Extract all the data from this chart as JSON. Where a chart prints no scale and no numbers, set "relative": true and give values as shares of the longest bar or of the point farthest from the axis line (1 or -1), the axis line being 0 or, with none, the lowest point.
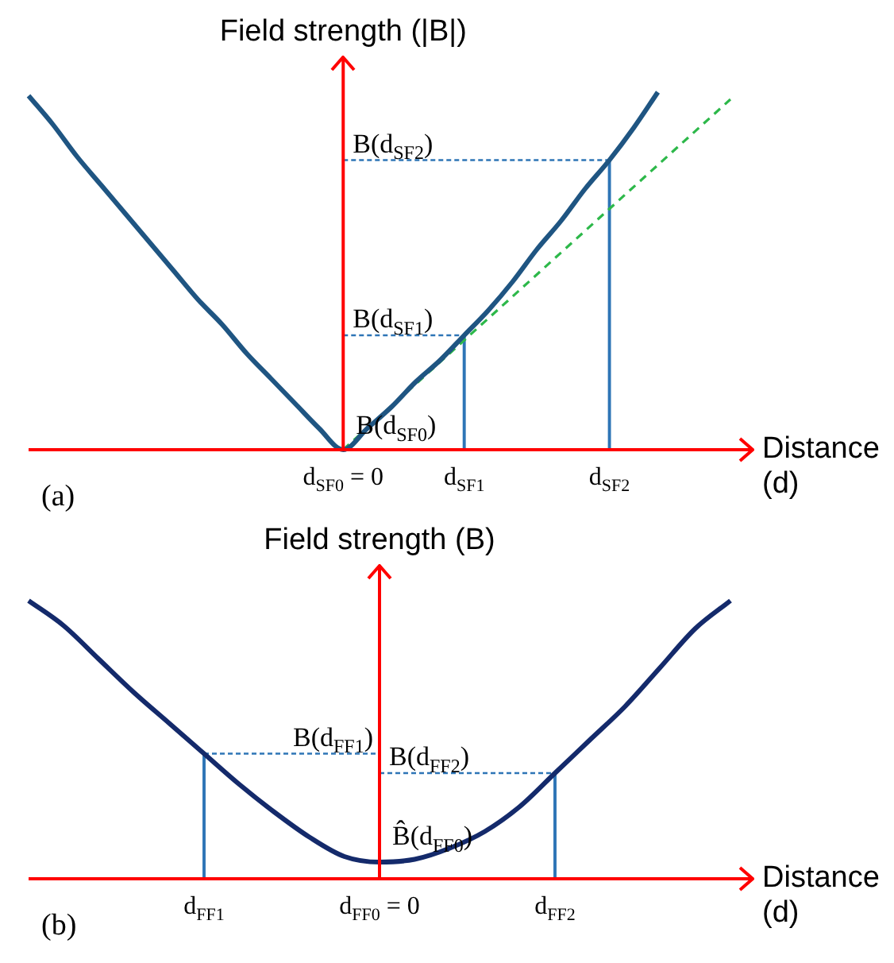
{
  "chart_data": [
    {
      "type": "line",
      "ylabel": "Field strength (|B|)",
      "xlabel": "Distance (d)",
      "relative": true,
      "marker": "none",
      "categories": [
        null,
        null,
        null,
        null,
        null,
        null,
        null,
        null,
        null,
        null,
        null,
        null,
        null,
        "d$_{SF0}$ = 0",
        null,
        null,
        null,
        null,
        "d$_{SF1}$",
        null,
        null,
        null,
        null,
        null,
        "d$_{SF2}$",
        null,
        null,
        null,
        null,
        null
      ],
      "series": [
        {
          "color": "#1f5582",
          "line_style": "solid",
          "values": [
            0.99,
            0.91,
            0.82,
            0.74,
            0.66,
            0.58,
            0.5,
            0.42,
            0.35,
            0.27,
            0.2,
            0.13,
            0.06,
            0,
            0.06,
            0.12,
            0.19,
            0.25,
            0.32,
            0.39,
            0.47,
            0.56,
            0.64,
            0.73,
            0.81,
            0.9,
            1,
            null,
            null,
            null
          ]
        },
        {
          "color": "#2db84a",
          "line_style": "dashed",
          "values": [
            null,
            null,
            null,
            null,
            null,
            null,
            null,
            null,
            null,
            null,
            null,
            null,
            null,
            0,
            null,
            null,
            null,
            null,
            null,
            null,
            null,
            null,
            null,
            null,
            null,
            null,
            null,
            null,
            null,
            0.98
          ]
        },
        {
          "color": "#2e75b6",
          "line_style": "dotted",
          "values": [
            null,
            null,
            null,
            null,
            null,
            null,
            null,
            null,
            null,
            null,
            null,
            null,
            null,
            0.32,
            0.32,
            0.32,
            0.32,
            0.32,
            0.32,
            null,
            null,
            null,
            null,
            null,
            null,
            null,
            null,
            null,
            null,
            null
          ]
        },
        {
          "color": "#2e75b6",
          "line_style": "dotted",
          "values": [
            null,
            null,
            null,
            null,
            null,
            null,
            null,
            null,
            null,
            null,
            null,
            null,
            null,
            0.81,
            0.81,
            0.81,
            0.81,
            0.81,
            0.81,
            0.81,
            0.81,
            0.81,
            0.81,
            0.81,
            0.81,
            null,
            null,
            null,
            null,
            null
          ]
        },
        {
          "type": "bar",
          "color": "#2e75b6",
          "values": [
            null,
            null,
            null,
            null,
            null,
            null,
            null,
            null,
            null,
            null,
            null,
            null,
            null,
            null,
            null,
            null,
            null,
            null,
            0.32,
            null,
            null,
            null,
            null,
            null,
            0.81,
            null,
            null,
            null,
            null,
            null
          ]
        }
      ],
      "annotations": [
        {
          "text": "B(d$_{SF2}$)",
          "y": 0.81
        },
        {
          "text": "B(d$_{SF1}$)",
          "y": 0.32
        },
        "B(d$_{SF0}$)",
        "(a)"
      ]
    },
    {
      "type": "line",
      "ylabel": "Field strength (B)",
      "xlabel": "Distance (d)",
      "relative": true,
      "marker": "none",
      "categories": [
        null,
        null,
        null,
        null,
        null,
        "d$_{FF1}$",
        null,
        null,
        null,
        null,
        "d$_{FF0}$ = 0",
        null,
        null,
        null,
        null,
        "d$_{FF2}$",
        null,
        null,
        null,
        null,
        null
      ],
      "series": [
        {
          "color": "#142a6b",
          "line_style": "solid",
          "values": [
            1,
            0.91,
            0.79,
            0.67,
            0.56,
            0.45,
            0.34,
            0.24,
            0.15,
            0.08,
            0.06,
            0.07,
            0.11,
            0.17,
            0.26,
            0.38,
            0.5,
            0.62,
            0.76,
            0.9,
            1
          ]
        },
        {
          "color": "#2e75b6",
          "line_style": "dotted",
          "values": [
            null,
            null,
            null,
            null,
            null,
            0.45,
            0.45,
            0.45,
            0.45,
            0.45,
            0.45,
            null,
            null,
            null,
            null,
            null,
            null,
            null,
            null,
            null,
            null
          ]
        },
        {
          "color": "#2e75b6",
          "line_style": "dotted",
          "values": [
            null,
            null,
            null,
            null,
            null,
            null,
            null,
            null,
            null,
            null,
            0.38,
            0.38,
            0.38,
            0.38,
            0.38,
            0.38,
            null,
            null,
            null,
            null,
            null
          ]
        },
        {
          "type": "bar",
          "color": "#2e75b6",
          "values": [
            null,
            null,
            null,
            null,
            null,
            0.45,
            null,
            null,
            null,
            null,
            null,
            null,
            null,
            null,
            null,
            0.38,
            null,
            null,
            null,
            null,
            null
          ]
        }
      ],
      "annotations": [
        {
          "text": "B(d$_{FF1}$)",
          "y": 0.45
        },
        {
          "text": "B(d$_{FF2}$)",
          "y": 0.38
        },
        {
          "text": "B̂(d$_{FF0}$)",
          "y": 0.06
        },
        "(b)"
      ]
    }
  ]
}
